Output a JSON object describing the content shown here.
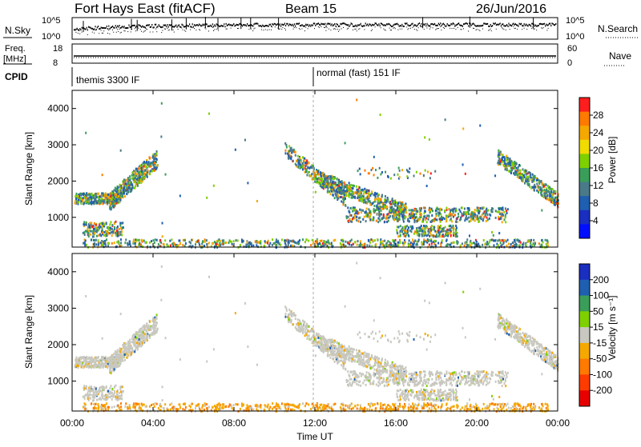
{
  "header": {
    "site": "Fort Hays East (fitACF)",
    "beam": "Beam 15",
    "date": "26/Jun/2016"
  },
  "top_panels": {
    "nsky_label": "N.Sky",
    "nsearch_label": "N.Search",
    "freq_label_line1": "Freq.",
    "freq_label_line2": "[MHz]",
    "nave_label": "Nave",
    "cpid_label": "CPID",
    "nsky_ticks": [
      "10^5",
      "10^0"
    ],
    "nsearch_ticks": [
      "10^5",
      "10^0"
    ],
    "freq_ticks": [
      "18",
      "8"
    ],
    "nave_ticks": [
      "60",
      "0"
    ],
    "cpid_segments": [
      {
        "label": "themis 3300 IF",
        "start_hour": 0
      },
      {
        "label": "normal (fast) 151 IF",
        "start_hour": 12
      }
    ]
  },
  "chart_data": [
    {
      "type": "heatmap",
      "panel": "power",
      "ylabel": "Slant Range [km]",
      "xlabel": "",
      "colorbar_label": "Power [dB]",
      "colorbar_ticks": [
        "28",
        "24",
        "20",
        "16",
        "12",
        "8",
        "4"
      ],
      "colorbar_colors": [
        "#ff1e1e",
        "#ff7a00",
        "#f5a800",
        "#f0dc00",
        "#7fd000",
        "#3a9e5a",
        "#4a7a8a",
        "#1f5fb0",
        "#1a2ec0",
        "#0010ff"
      ],
      "x_ticks": [
        "00:00",
        "04:00",
        "08:00",
        "12:00",
        "16:00",
        "20:00",
        "00:00"
      ],
      "xlim_hours": [
        0,
        24
      ],
      "y_ticks": [
        "4000",
        "3000",
        "2000",
        "1000"
      ],
      "ylim_km": [
        180,
        4500
      ]
    },
    {
      "type": "heatmap",
      "panel": "velocity",
      "ylabel": "Slant Range [km]",
      "xlabel": "Time UT",
      "colorbar_label": "Velocity [m s⁻¹]",
      "colorbar_ticks": [
        "200",
        "100",
        "50",
        "15",
        "-15",
        "-50",
        "-100",
        "-200"
      ],
      "colorbar_colors": [
        "#1a2ec0",
        "#1f5fb0",
        "#3a9e5a",
        "#7fd000",
        "#c8c8c0",
        "#f5a800",
        "#ff7a00",
        "#ff3c00",
        "#e80000"
      ],
      "x_ticks": [
        "00:00",
        "04:00",
        "08:00",
        "12:00",
        "16:00",
        "20:00",
        "00:00"
      ],
      "xlim_hours": [
        0,
        24
      ],
      "y_ticks": [
        "4000",
        "3000",
        "2000",
        "1000"
      ],
      "ylim_km": [
        180,
        4500
      ]
    }
  ]
}
